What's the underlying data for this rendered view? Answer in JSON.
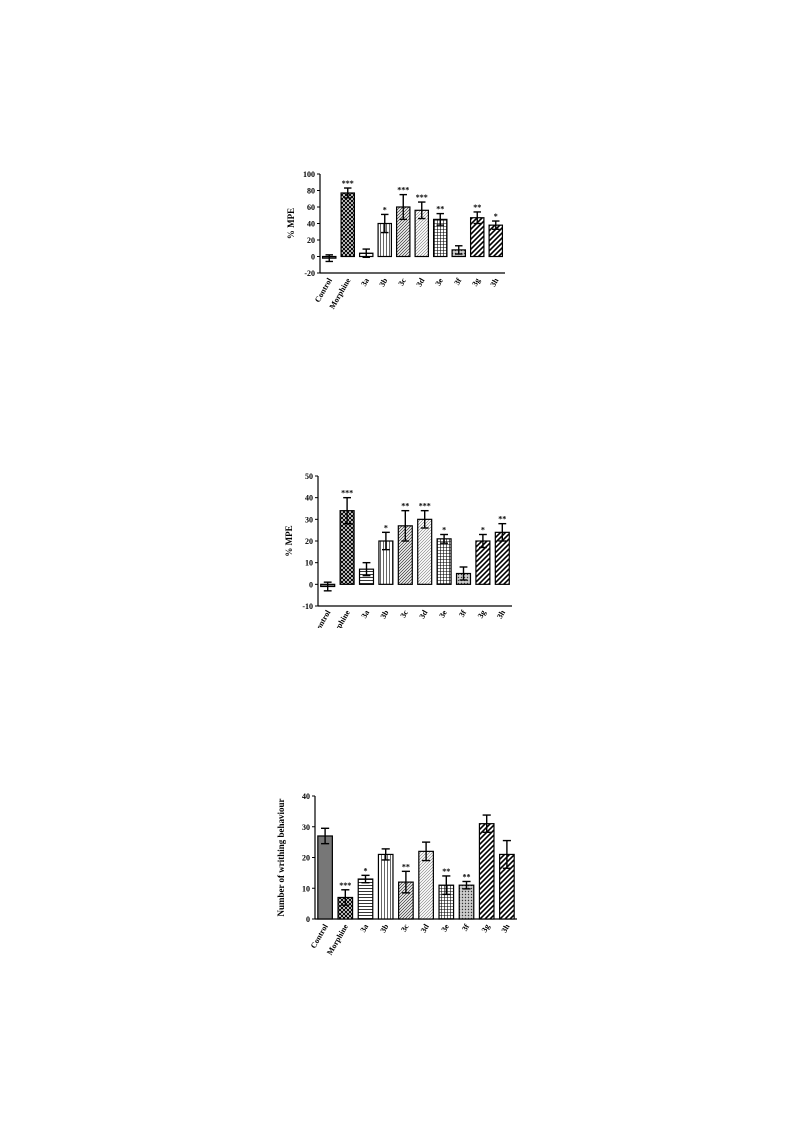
{
  "charts": [
    {
      "type": "bar",
      "ylabel": "% MPE",
      "ylim": [
        -20,
        100
      ],
      "yticks": [
        -20,
        0,
        20,
        40,
        60,
        80,
        100
      ],
      "categories": [
        "Control",
        "Morphine",
        "3a",
        "3b",
        "3c",
        "3d",
        "3e",
        "3f",
        "3g",
        "3h"
      ],
      "values": [
        -2,
        77,
        4,
        40,
        60,
        56,
        45,
        8,
        47,
        38
      ],
      "errors": [
        4,
        6,
        5,
        11,
        15,
        10,
        7,
        5,
        7,
        5
      ],
      "significance": [
        "",
        "***",
        "",
        "*",
        "***",
        "***",
        "**",
        "",
        "**",
        "*"
      ],
      "patterns": [
        "solid",
        "cross",
        "hlines",
        "vlines",
        "diag-dense",
        "diag-fine",
        "grid",
        "dots",
        "diag-thick",
        "diag-thick"
      ]
    },
    {
      "type": "bar",
      "ylabel": "% MPE",
      "ylim": [
        -10,
        50
      ],
      "yticks": [
        -10,
        0,
        10,
        20,
        30,
        40,
        50
      ],
      "categories": [
        "Control",
        "Morphine",
        "3a",
        "3b",
        "3c",
        "3d",
        "3e",
        "3f",
        "3g",
        "3h"
      ],
      "values": [
        -1,
        34,
        7,
        20,
        27,
        30,
        21,
        5,
        20,
        24
      ],
      "errors": [
        2,
        6,
        3,
        4,
        7,
        4,
        2,
        3,
        3,
        4
      ],
      "significance": [
        "",
        "***",
        "",
        "*",
        "**",
        "***",
        "*",
        "",
        "*",
        "**"
      ],
      "patterns": [
        "solid",
        "cross",
        "hlines",
        "vlines",
        "diag-dense",
        "diag-fine",
        "grid",
        "dots",
        "diag-thick",
        "diag-thick"
      ]
    },
    {
      "type": "bar",
      "ylabel": "Number of writhing behaviour",
      "ylim": [
        0,
        40
      ],
      "yticks": [
        0,
        10,
        20,
        30,
        40
      ],
      "categories": [
        "Control",
        "Morphine",
        "3a",
        "3b",
        "3c",
        "3d",
        "3e",
        "3f",
        "3g",
        "3h"
      ],
      "values": [
        27,
        7,
        13,
        21,
        12,
        22,
        11,
        11,
        31,
        21
      ],
      "errors": [
        2.5,
        2.5,
        1.2,
        1.8,
        3.5,
        3,
        3,
        1.2,
        2.8,
        4.5
      ],
      "significance": [
        "",
        "***",
        "*",
        "",
        "**",
        "",
        "**",
        "**",
        "",
        ""
      ],
      "patterns": [
        "solid",
        "cross",
        "hlines",
        "vlines",
        "diag-dense",
        "diag-fine",
        "grid",
        "dots",
        "diag-thick",
        "diag-thick"
      ]
    }
  ]
}
